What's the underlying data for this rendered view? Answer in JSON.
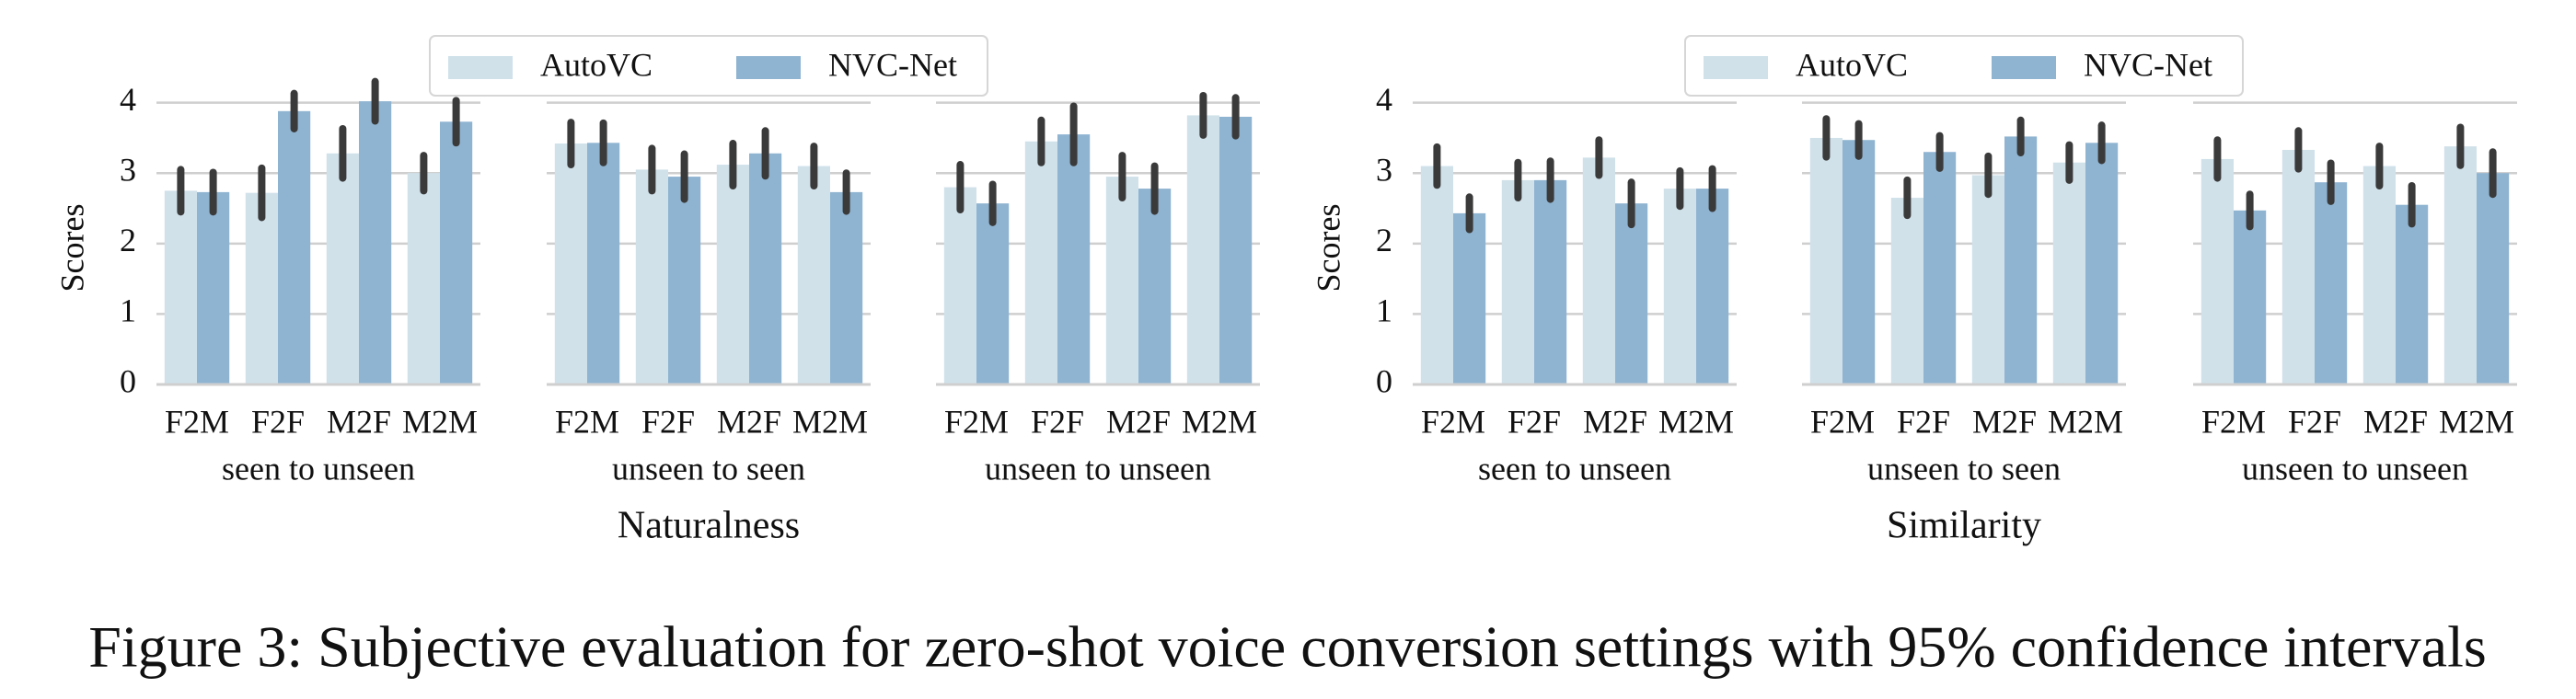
{
  "caption": "Figure 3: Subjective evaluation for zero-shot voice conversion settings with 95% confidence intervals",
  "chart_data": [
    {
      "type": "bar",
      "ylabel": "Scores",
      "xlabel": "seen to unseen",
      "legend": "upper center",
      "categories": [
        "F2M",
        "F2F",
        "M2F",
        "M2M"
      ],
      "ylim": [
        0,
        4.4
      ],
      "yticks": [
        0,
        1,
        2,
        3,
        4
      ],
      "grid": true,
      "series": [
        {
          "name": "AutoVC",
          "color": "#d0e1ea",
          "values": [
            2.75,
            2.72,
            3.28,
            3.0
          ],
          "errors": [
            0.3,
            0.35,
            0.35,
            0.25
          ]
        },
        {
          "name": "NVC-Net",
          "color": "#8fb4d1",
          "values": [
            2.73,
            3.88,
            4.02,
            3.73
          ],
          "errors": [
            0.28,
            0.25,
            0.28,
            0.3
          ]
        }
      ]
    },
    {
      "type": "bar",
      "xlabel": "unseen to seen",
      "title": "Naturalness",
      "categories": [
        "F2M",
        "F2F",
        "M2F",
        "M2M"
      ],
      "ylim": [
        0,
        4.4
      ],
      "yticks": [
        0,
        1,
        2,
        3,
        4
      ],
      "grid": true,
      "series": [
        {
          "name": "AutoVC",
          "color": "#d0e1ea",
          "values": [
            3.42,
            3.05,
            3.12,
            3.1
          ],
          "errors": [
            0.3,
            0.3,
            0.3,
            0.28
          ]
        },
        {
          "name": "NVC-Net",
          "color": "#8fb4d1",
          "values": [
            3.43,
            2.95,
            3.28,
            2.73
          ],
          "errors": [
            0.28,
            0.32,
            0.32,
            0.27
          ]
        }
      ]
    },
    {
      "type": "bar",
      "xlabel": "unseen to unseen",
      "categories": [
        "F2M",
        "F2F",
        "M2F",
        "M2M"
      ],
      "ylim": [
        0,
        4.4
      ],
      "yticks": [
        0,
        1,
        2,
        3,
        4
      ],
      "grid": true,
      "series": [
        {
          "name": "AutoVC",
          "color": "#d0e1ea",
          "values": [
            2.8,
            3.45,
            2.95,
            3.82
          ],
          "errors": [
            0.32,
            0.3,
            0.3,
            0.28
          ]
        },
        {
          "name": "NVC-Net",
          "color": "#8fb4d1",
          "values": [
            2.57,
            3.55,
            2.78,
            3.8
          ],
          "errors": [
            0.27,
            0.4,
            0.32,
            0.27
          ]
        }
      ]
    },
    {
      "type": "bar",
      "ylabel": "Scores",
      "xlabel": "seen to unseen",
      "legend": "upper center",
      "categories": [
        "F2M",
        "F2F",
        "M2F",
        "M2M"
      ],
      "ylim": [
        0,
        4.4
      ],
      "yticks": [
        0,
        1,
        2,
        3,
        4
      ],
      "grid": true,
      "series": [
        {
          "name": "AutoVC",
          "color": "#d0e1ea",
          "values": [
            3.1,
            2.9,
            3.22,
            2.78
          ],
          "errors": [
            0.27,
            0.25,
            0.25,
            0.25
          ]
        },
        {
          "name": "NVC-Net",
          "color": "#8fb4d1",
          "values": [
            2.43,
            2.9,
            2.57,
            2.78
          ],
          "errors": [
            0.23,
            0.27,
            0.3,
            0.28
          ]
        }
      ]
    },
    {
      "type": "bar",
      "xlabel": "unseen to seen",
      "title": "Similarity",
      "categories": [
        "F2M",
        "F2F",
        "M2F",
        "M2M"
      ],
      "ylim": [
        0,
        4.4
      ],
      "yticks": [
        0,
        1,
        2,
        3,
        4
      ],
      "grid": true,
      "series": [
        {
          "name": "AutoVC",
          "color": "#d0e1ea",
          "values": [
            3.5,
            2.65,
            2.97,
            3.15
          ],
          "errors": [
            0.27,
            0.25,
            0.27,
            0.25
          ]
        },
        {
          "name": "NVC-Net",
          "color": "#8fb4d1",
          "values": [
            3.47,
            3.3,
            3.52,
            3.43
          ],
          "errors": [
            0.23,
            0.23,
            0.23,
            0.25
          ]
        }
      ]
    },
    {
      "type": "bar",
      "xlabel": "unseen to unseen",
      "categories": [
        "F2M",
        "F2F",
        "M2F",
        "M2M"
      ],
      "ylim": [
        0,
        4.4
      ],
      "yticks": [
        0,
        1,
        2,
        3,
        4
      ],
      "grid": true,
      "series": [
        {
          "name": "AutoVC",
          "color": "#d0e1ea",
          "values": [
            3.2,
            3.33,
            3.1,
            3.38
          ],
          "errors": [
            0.27,
            0.27,
            0.28,
            0.27
          ]
        },
        {
          "name": "NVC-Net",
          "color": "#8fb4d1",
          "values": [
            2.47,
            2.87,
            2.55,
            3.0
          ],
          "errors": [
            0.23,
            0.27,
            0.27,
            0.3
          ]
        }
      ]
    }
  ]
}
